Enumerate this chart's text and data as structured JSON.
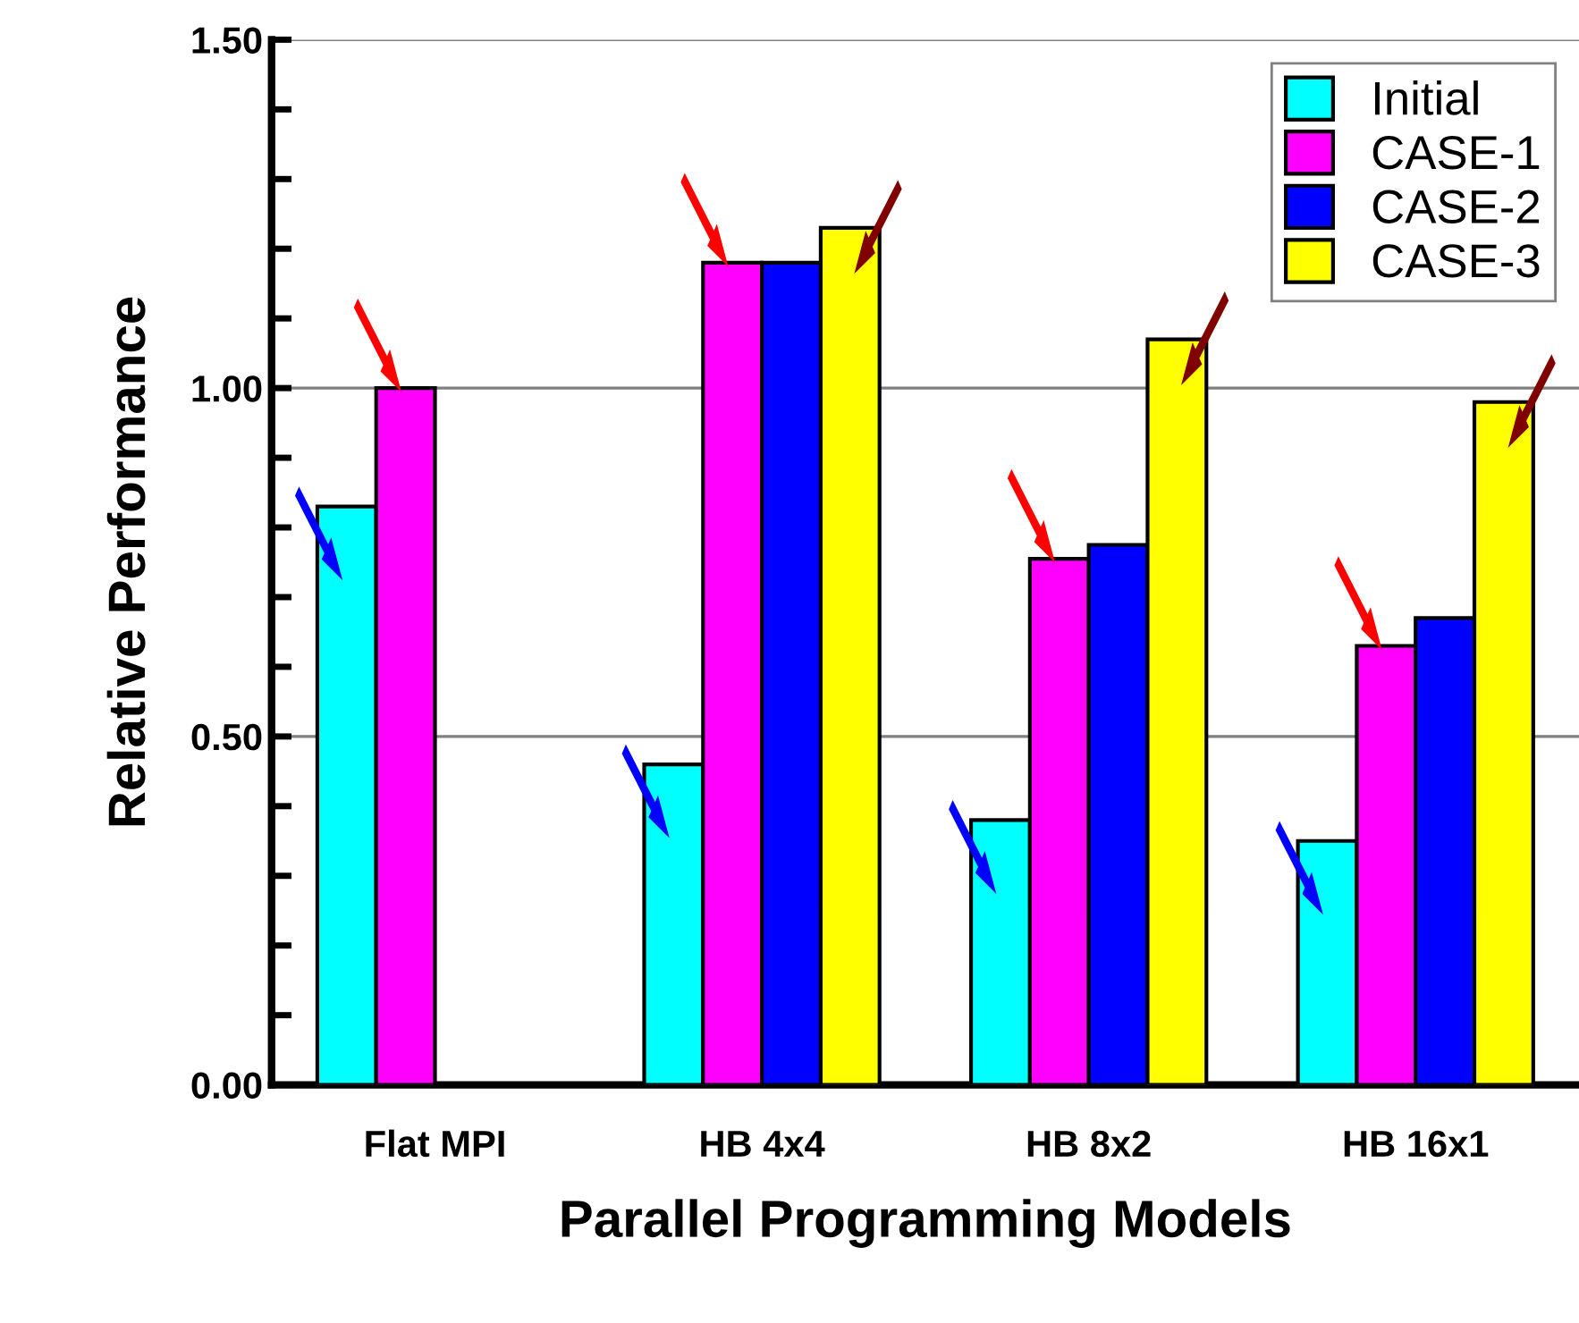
{
  "chart_data": {
    "type": "bar",
    "xlabel": "Parallel Programming Models",
    "ylabel": "Relative Performance",
    "categories": [
      "Flat MPI",
      "HB 4x4",
      "HB 8x2",
      "HB 16x1"
    ],
    "series": [
      {
        "name": "Initial",
        "color": "#00ffff",
        "values": [
          0.83,
          0.46,
          0.38,
          0.35
        ]
      },
      {
        "name": "CASE-1",
        "color": "#ff00ff",
        "values": [
          1.0,
          1.18,
          0.755,
          0.63
        ]
      },
      {
        "name": "CASE-2",
        "color": "#0000ff",
        "values": [
          null,
          1.18,
          0.775,
          0.67
        ]
      },
      {
        "name": "CASE-3",
        "color": "#ffff00",
        "values": [
          null,
          1.23,
          1.07,
          0.98
        ]
      }
    ],
    "ylim": [
      0,
      1.5
    ],
    "yticks": [
      {
        "value": 0,
        "label": "0.00"
      },
      {
        "value": 0.1,
        "label": null
      },
      {
        "value": 0.2,
        "label": null
      },
      {
        "value": 0.3,
        "label": null
      },
      {
        "value": 0.4,
        "label": null
      },
      {
        "value": 0.5,
        "label": "0.50"
      },
      {
        "value": 0.6,
        "label": null
      },
      {
        "value": 0.7,
        "label": null
      },
      {
        "value": 0.8,
        "label": null
      },
      {
        "value": 0.9,
        "label": null
      },
      {
        "value": 1.0,
        "label": "1.00"
      },
      {
        "value": 1.1,
        "label": null
      },
      {
        "value": 1.2,
        "label": null
      },
      {
        "value": 1.3,
        "label": null
      },
      {
        "value": 1.4,
        "label": null
      },
      {
        "value": 1.5,
        "label": "1.50"
      }
    ],
    "grid": "y",
    "legend": "top right"
  }
}
